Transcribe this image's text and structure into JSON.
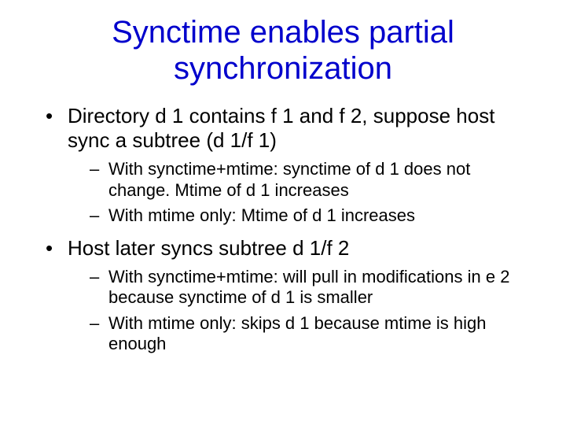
{
  "title_color": "#0000cc",
  "body_color": "#000000",
  "background_color": "#ffffff",
  "title_fontsize": 40,
  "level1_fontsize": 26,
  "level2_fontsize": 22,
  "title": "Synctime enables partial synchronization",
  "bullets": [
    {
      "text": "Directory d 1 contains f 1 and f 2, suppose host sync a subtree (d 1/f 1)",
      "sub": [
        "With synctime+mtime: synctime of d 1 does not change. Mtime of d 1 increases",
        "With mtime only: Mtime of d 1 increases"
      ]
    },
    {
      "text": "Host later syncs subtree d 1/f 2",
      "sub": [
        "With synctime+mtime: will pull in modifications in e 2 because synctime of d 1 is smaller",
        "With mtime only: skips d 1 because mtime is high enough"
      ]
    }
  ]
}
